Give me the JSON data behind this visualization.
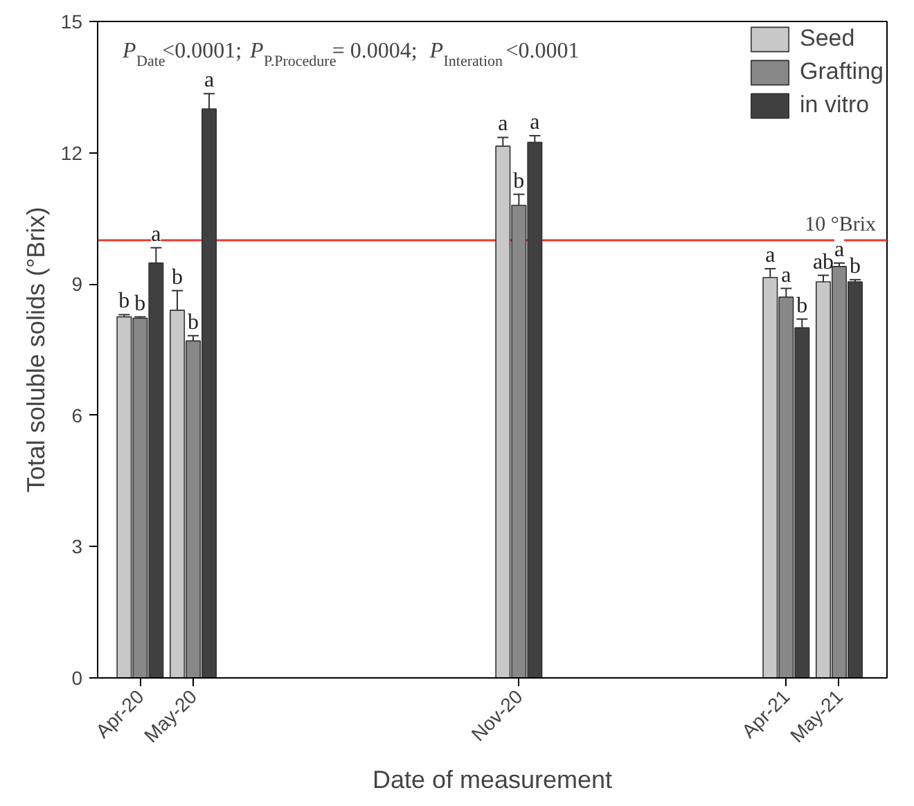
{
  "chart_data": {
    "type": "bar",
    "xlabel": "Date of measurement",
    "ylabel": "Total soluble solids (°Brix)",
    "x": [
      "2020-04",
      "2020-05",
      "2020-11",
      "2021-04",
      "2021-05"
    ],
    "xlim": [
      "2020-03-08",
      "2021-05-28"
    ],
    "xticks": [
      {
        "value": "2020-04",
        "label": "Apr-20"
      },
      {
        "value": "2020-05",
        "label": "May-20"
      },
      {
        "value": "2020-11",
        "label": "Nov-20"
      },
      {
        "value": "2021-04",
        "label": "Apr-21"
      },
      {
        "value": "2021-05",
        "label": "May-21"
      }
    ],
    "ylim": [
      0,
      15
    ],
    "yticks": [
      0,
      3,
      6,
      9,
      12,
      15
    ],
    "grid": false,
    "legend": "top right",
    "series": [
      {
        "name": "Seed",
        "color": "#c8c8c8",
        "values": [
          8.25,
          8.4,
          12.15,
          9.15,
          9.05
        ],
        "errors": [
          0.05,
          0.45,
          0.2,
          0.2,
          0.15
        ],
        "value_labels": [
          "b",
          "b",
          "a",
          "a",
          "ab"
        ]
      },
      {
        "name": "Grafting",
        "color": "#888888",
        "values": [
          8.22,
          7.7,
          10.8,
          8.7,
          9.4
        ],
        "errors": [
          0.03,
          0.12,
          0.25,
          0.2,
          0.08
        ],
        "value_labels": [
          "b",
          "b",
          "b",
          "a",
          "a"
        ]
      },
      {
        "name": "in vitro",
        "color": "#404040",
        "values": [
          9.48,
          13.0,
          12.24,
          8.0,
          9.05
        ],
        "errors": [
          0.35,
          0.35,
          0.15,
          0.2,
          0.05
        ],
        "value_labels": [
          "a",
          "a",
          "a",
          "b",
          "b"
        ]
      }
    ],
    "ref_lines": [
      {
        "axis": "y",
        "value": 10,
        "label": "10 °Brix",
        "color": "#e8392f"
      }
    ],
    "annotations": [
      "P$_{Date}$<0.0001; P$_{P.Procedure}$= 0.0004; P$_{Interation}$<0.0001"
    ]
  }
}
